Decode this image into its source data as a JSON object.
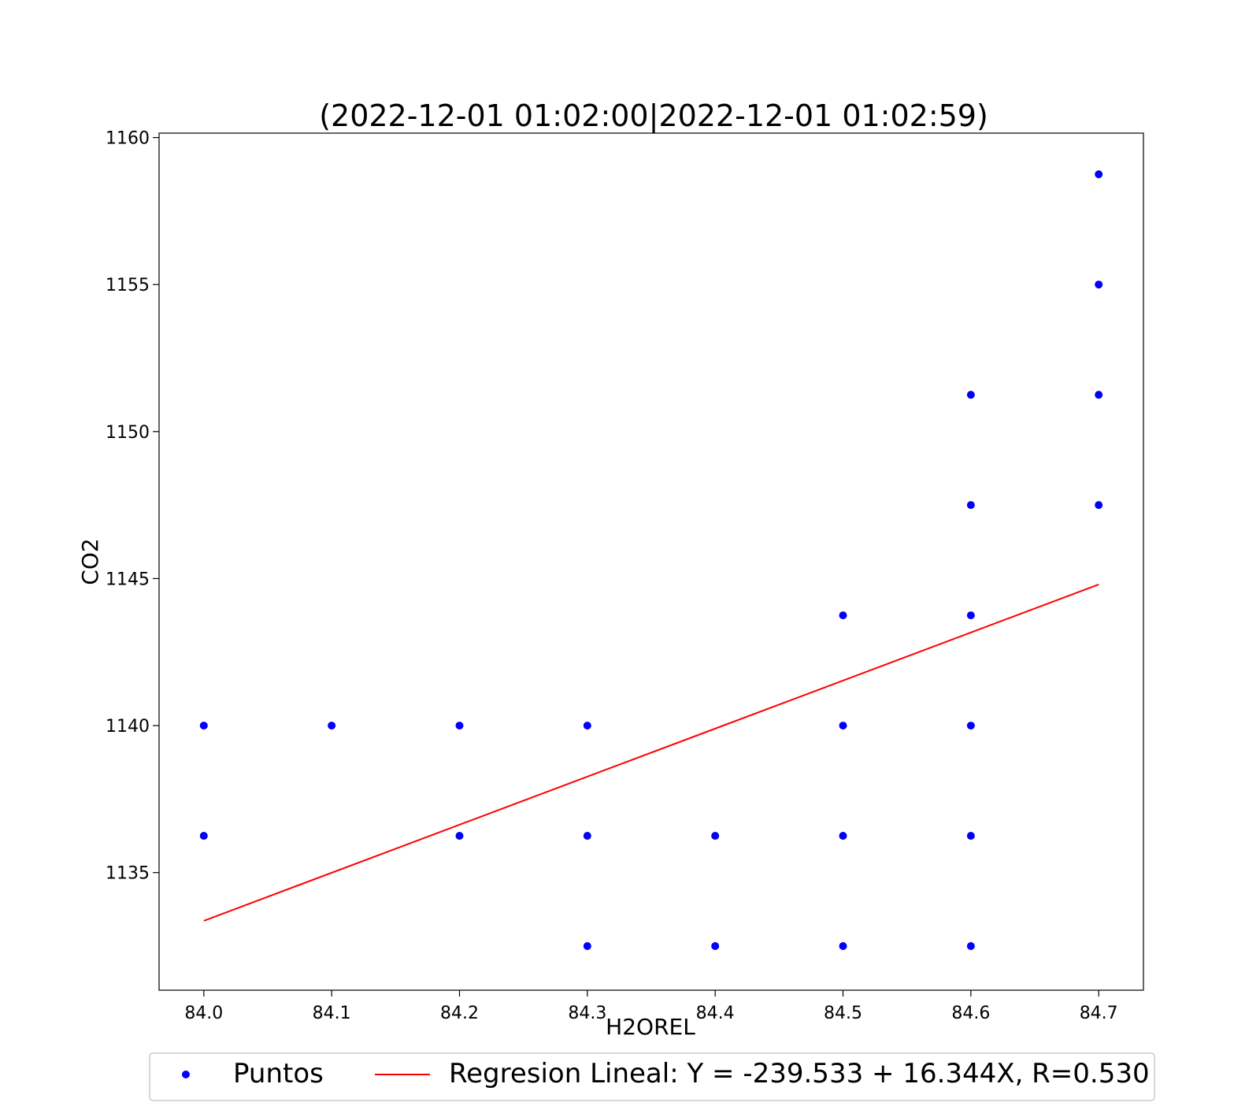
{
  "chart_data": {
    "type": "scatter",
    "title": "(2022-12-01 01:02:00|2022-12-01 01:02:59)",
    "xlabel": "H2OREL",
    "ylabel": "CO2",
    "xlim": [
      83.965,
      84.735
    ],
    "ylim": [
      1131.0,
      1160.15
    ],
    "x_ticks": [
      84.0,
      84.1,
      84.2,
      84.3,
      84.4,
      84.5,
      84.6,
      84.7
    ],
    "x_tick_labels": [
      "84.0",
      "84.1",
      "84.2",
      "84.3",
      "84.4",
      "84.5",
      "84.6",
      "84.7"
    ],
    "y_ticks": [
      1135,
      1140,
      1145,
      1150,
      1155,
      1160
    ],
    "y_tick_labels": [
      "1135",
      "1140",
      "1145",
      "1150",
      "1155",
      "1160"
    ],
    "grid": false,
    "legend_position": "bottom-center",
    "series": [
      {
        "name": "Puntos",
        "kind": "scatter",
        "color": "#0000ff",
        "points": [
          {
            "x": 84.0,
            "y": 1140.0
          },
          {
            "x": 84.0,
            "y": 1136.25
          },
          {
            "x": 84.1,
            "y": 1140.0
          },
          {
            "x": 84.2,
            "y": 1140.0
          },
          {
            "x": 84.2,
            "y": 1136.25
          },
          {
            "x": 84.3,
            "y": 1140.0
          },
          {
            "x": 84.3,
            "y": 1136.25
          },
          {
            "x": 84.3,
            "y": 1132.5
          },
          {
            "x": 84.4,
            "y": 1136.25
          },
          {
            "x": 84.4,
            "y": 1132.5
          },
          {
            "x": 84.5,
            "y": 1143.75
          },
          {
            "x": 84.5,
            "y": 1140.0
          },
          {
            "x": 84.5,
            "y": 1136.25
          },
          {
            "x": 84.5,
            "y": 1132.5
          },
          {
            "x": 84.6,
            "y": 1151.25
          },
          {
            "x": 84.6,
            "y": 1147.5
          },
          {
            "x": 84.6,
            "y": 1143.75
          },
          {
            "x": 84.6,
            "y": 1140.0
          },
          {
            "x": 84.6,
            "y": 1136.25
          },
          {
            "x": 84.6,
            "y": 1132.5
          },
          {
            "x": 84.7,
            "y": 1158.75
          },
          {
            "x": 84.7,
            "y": 1155.0
          },
          {
            "x": 84.7,
            "y": 1151.25
          },
          {
            "x": 84.7,
            "y": 1147.5
          }
        ]
      },
      {
        "name": "Regresion Lineal: Y = -239.533 + 16.344X, R=0.530",
        "kind": "line",
        "color": "#ff0000",
        "intercept": -239.533,
        "slope": 16.344,
        "r": 0.53,
        "points": [
          {
            "x": 84.0,
            "y": 1133.36
          },
          {
            "x": 84.7,
            "y": 1144.8
          }
        ]
      }
    ]
  }
}
